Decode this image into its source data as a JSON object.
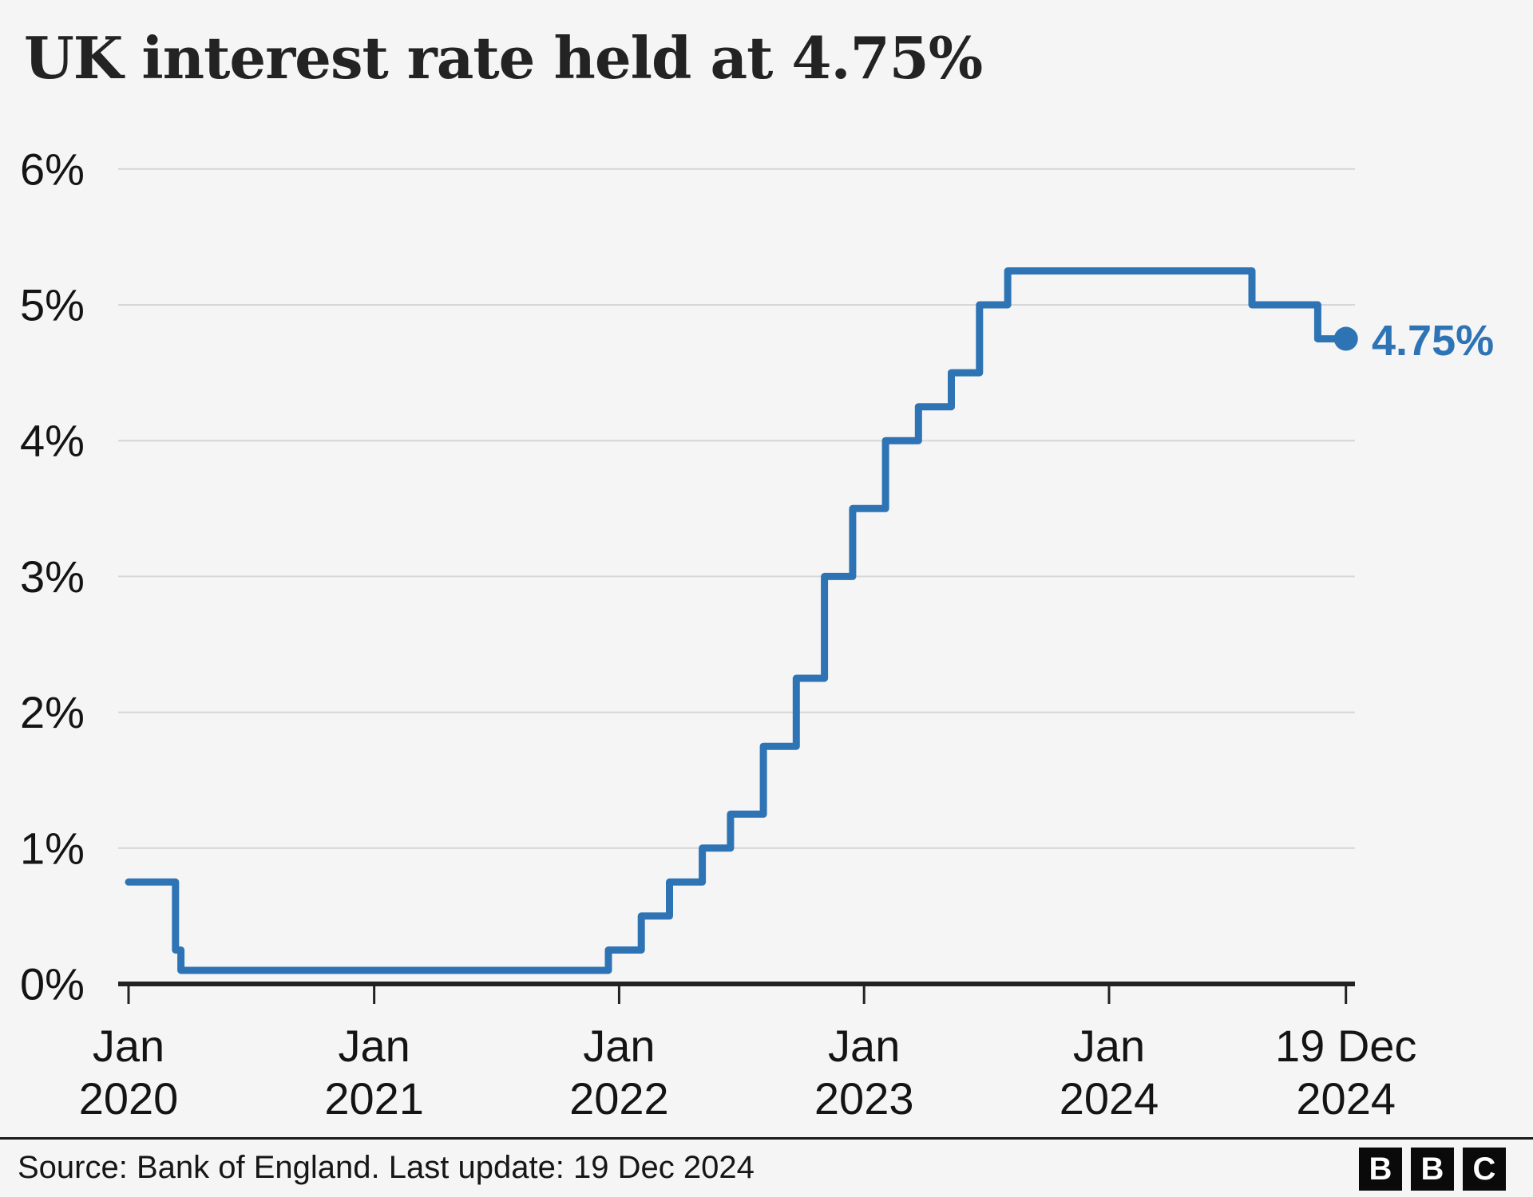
{
  "title": "UK interest rate held at 4.75%",
  "chart_data": {
    "type": "line",
    "subtype": "step-after",
    "title": "UK interest rate held at 4.75%",
    "xlabel": "",
    "ylabel": "",
    "ylim": [
      0,
      6
    ],
    "xlim": [
      "2020-01-01",
      "2024-12-19"
    ],
    "grid": true,
    "legend": "none",
    "line_color": "#2e74b5",
    "axis_color": "#222222",
    "grid_color": "#d6d6d6",
    "label_color": "#141414",
    "series": [
      {
        "name": "UK interest rate",
        "points": [
          {
            "date": "2020-01-01",
            "rate": 0.75
          },
          {
            "date": "2020-03-11",
            "rate": 0.25
          },
          {
            "date": "2020-03-19",
            "rate": 0.1
          },
          {
            "date": "2021-12-16",
            "rate": 0.25
          },
          {
            "date": "2022-02-03",
            "rate": 0.5
          },
          {
            "date": "2022-03-17",
            "rate": 0.75
          },
          {
            "date": "2022-05-05",
            "rate": 1.0
          },
          {
            "date": "2022-06-16",
            "rate": 1.25
          },
          {
            "date": "2022-08-04",
            "rate": 1.75
          },
          {
            "date": "2022-09-22",
            "rate": 2.25
          },
          {
            "date": "2022-11-03",
            "rate": 3.0
          },
          {
            "date": "2022-12-15",
            "rate": 3.5
          },
          {
            "date": "2023-02-02",
            "rate": 4.0
          },
          {
            "date": "2023-03-23",
            "rate": 4.25
          },
          {
            "date": "2023-05-11",
            "rate": 4.5
          },
          {
            "date": "2023-06-22",
            "rate": 5.0
          },
          {
            "date": "2023-08-03",
            "rate": 5.25
          },
          {
            "date": "2024-08-01",
            "rate": 5.0
          },
          {
            "date": "2024-11-07",
            "rate": 4.75
          },
          {
            "date": "2024-12-19",
            "rate": 4.75
          }
        ]
      }
    ],
    "y_ticks": [
      {
        "rate": 0,
        "label": "0%"
      },
      {
        "rate": 1,
        "label": "1%"
      },
      {
        "rate": 2,
        "label": "2%"
      },
      {
        "rate": 3,
        "label": "3%"
      },
      {
        "rate": 4,
        "label": "4%"
      },
      {
        "rate": 5,
        "label": "5%"
      },
      {
        "rate": 6,
        "label": "6%"
      }
    ],
    "x_ticks": [
      {
        "date": "2020-01-01",
        "label": [
          "Jan",
          "2020"
        ]
      },
      {
        "date": "2021-01-01",
        "label": [
          "Jan",
          "2021"
        ]
      },
      {
        "date": "2022-01-01",
        "label": [
          "Jan",
          "2022"
        ]
      },
      {
        "date": "2023-01-01",
        "label": [
          "Jan",
          "2023"
        ]
      },
      {
        "date": "2024-01-01",
        "label": [
          "Jan",
          "2024"
        ]
      },
      {
        "date": "2024-12-19",
        "label": [
          "19 Dec",
          "2024"
        ]
      }
    ],
    "end_label": "4.75%"
  },
  "footer": {
    "source": "Source: Bank of England. Last update: 19 Dec 2024",
    "logo_letters": [
      "B",
      "B",
      "C"
    ]
  }
}
